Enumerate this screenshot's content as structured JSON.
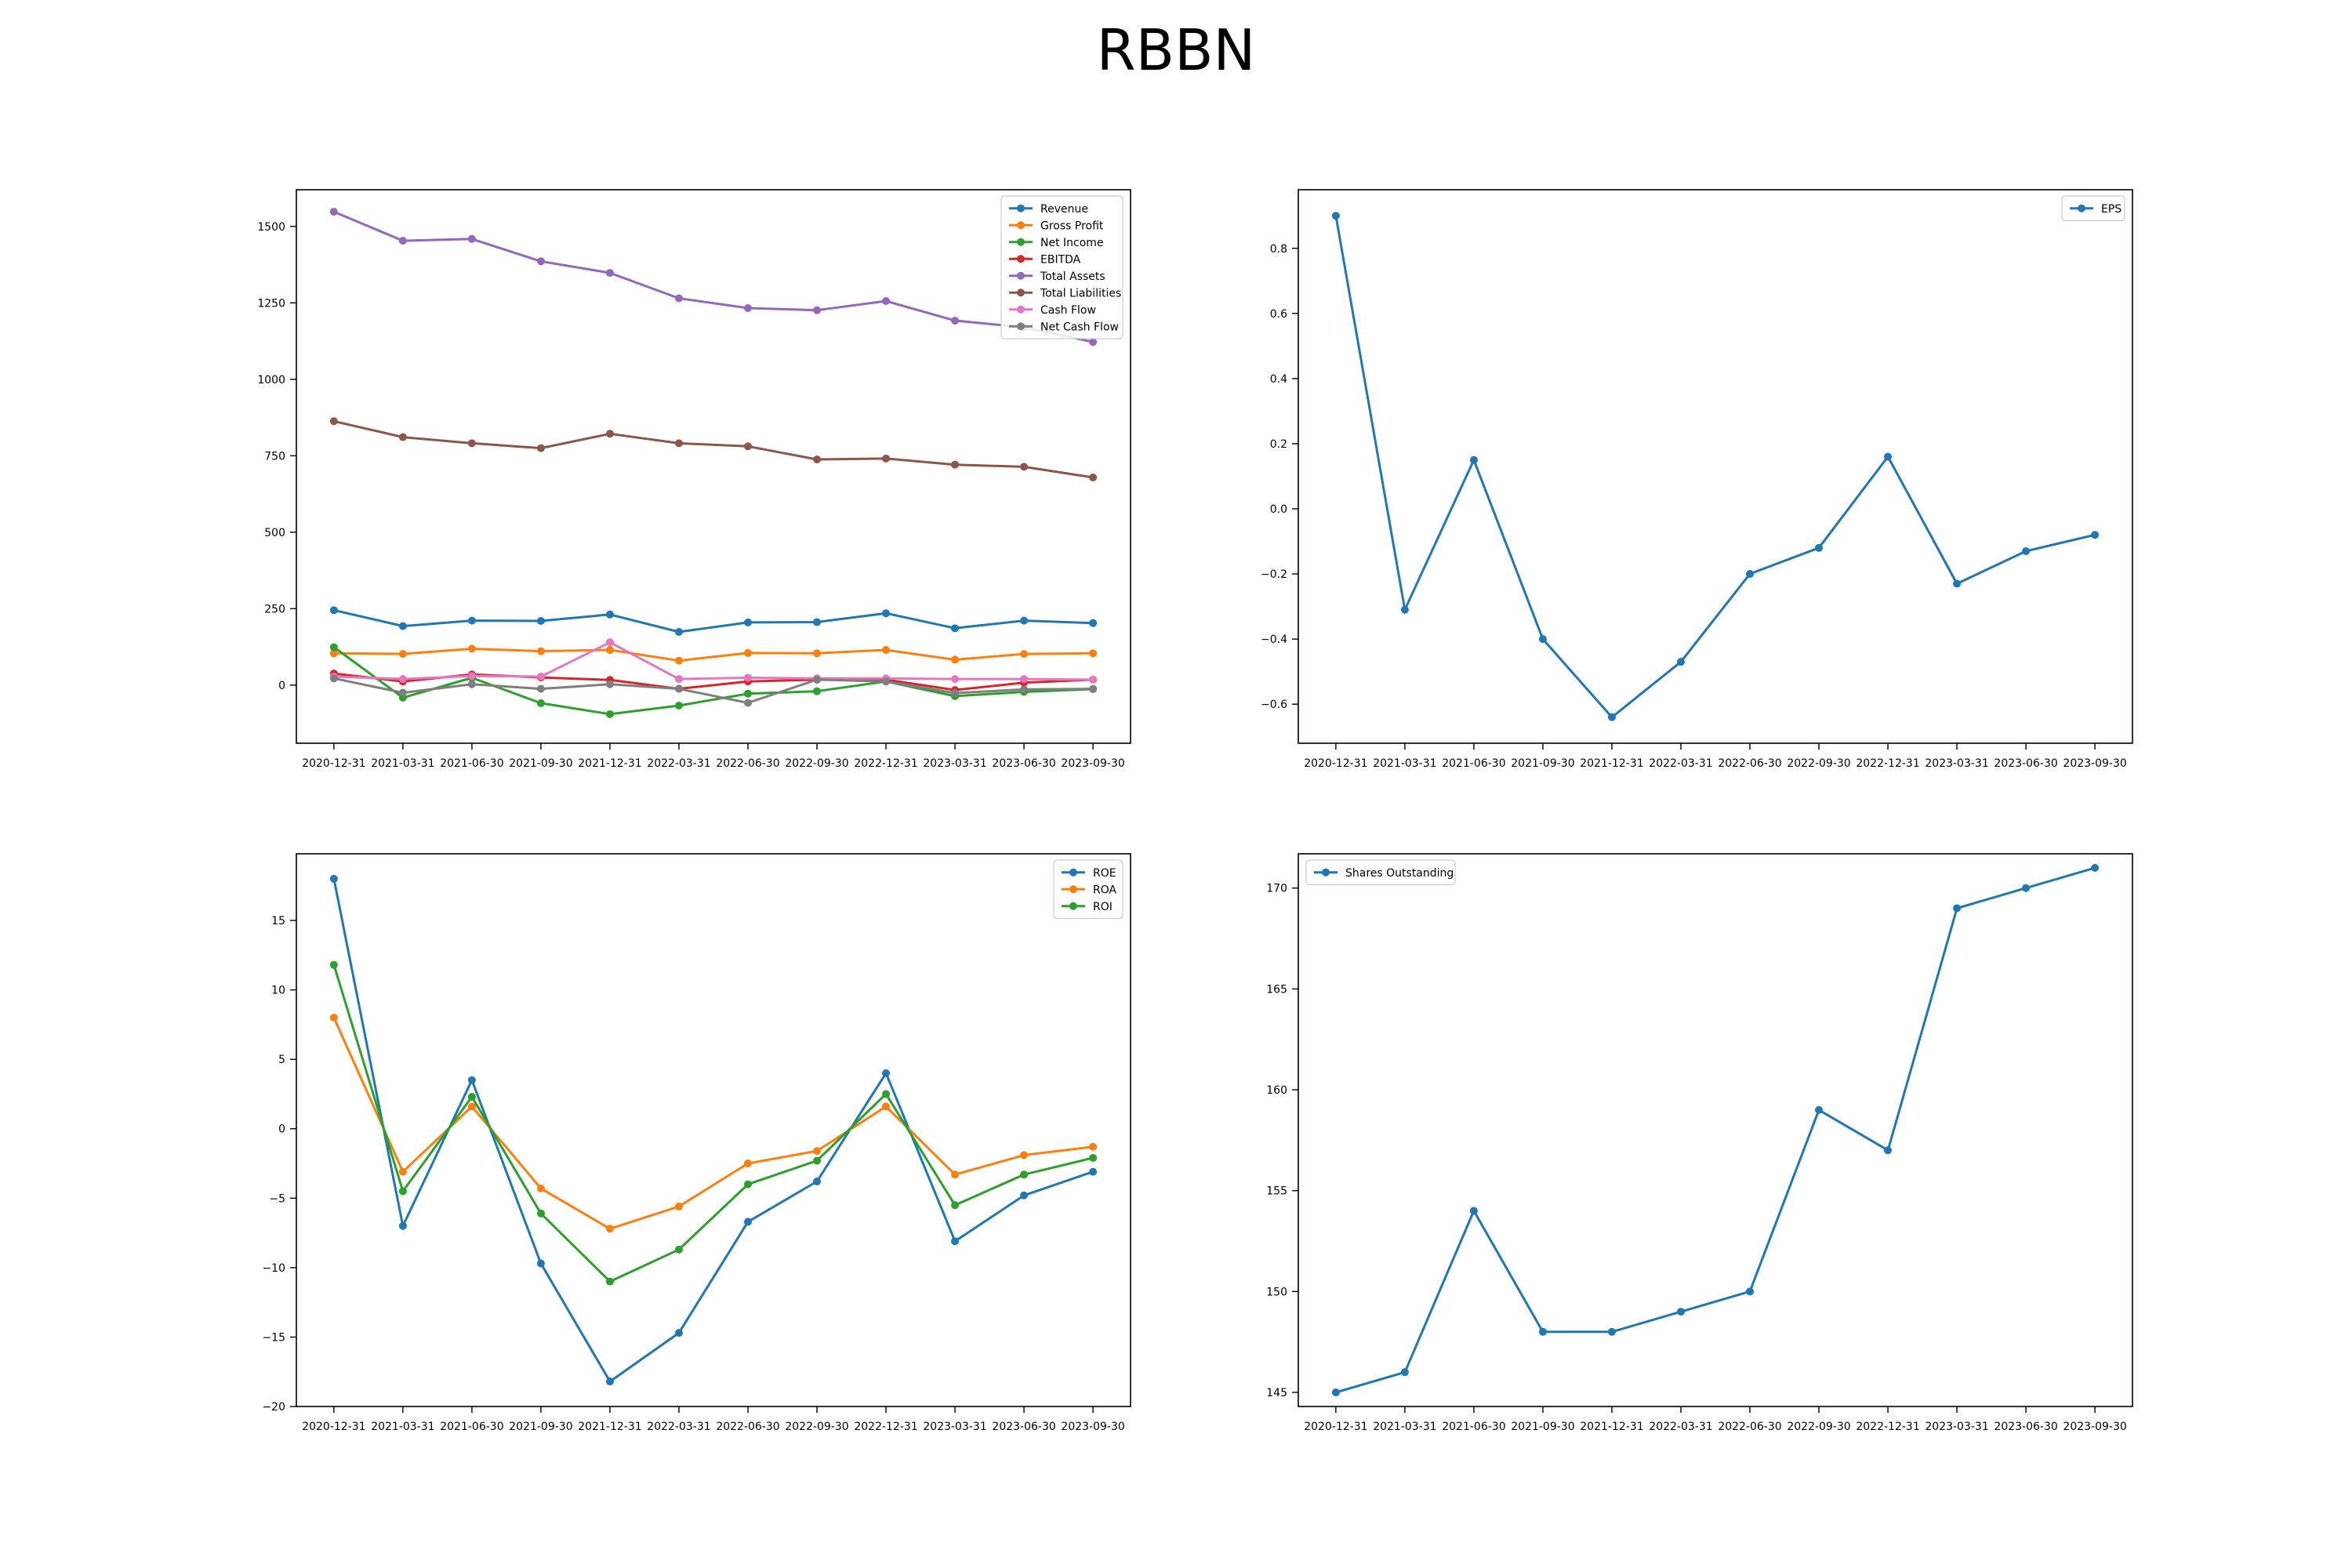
{
  "title": "RBBN",
  "chart_data": [
    {
      "type": "line",
      "categories": [
        "2020-12-31",
        "2021-03-31",
        "2021-06-30",
        "2021-09-30",
        "2021-12-31",
        "2022-03-31",
        "2022-06-30",
        "2022-09-30",
        "2022-12-31",
        "2023-03-31",
        "2023-06-30",
        "2023-09-30"
      ],
      "ylim": [
        -190,
        1620
      ],
      "yticks": [
        0,
        250,
        500,
        750,
        1000,
        1250,
        1500
      ],
      "legend": "upper-right",
      "grid": false,
      "series": [
        {
          "name": "Revenue",
          "color": "#1f77b4",
          "values": [
            245,
            193,
            211,
            210,
            231,
            174,
            205,
            206,
            235,
            186,
            211,
            203
          ]
        },
        {
          "name": "Gross Profit",
          "color": "#ff7f0e",
          "values": [
            104,
            102,
            119,
            111,
            115,
            80,
            105,
            104,
            115,
            83,
            102,
            104
          ]
        },
        {
          "name": "Net Income",
          "color": "#2ca02c",
          "values": [
            124,
            -41,
            24,
            -59,
            -95,
            -67,
            -28,
            -20,
            12,
            -36,
            -22,
            -13
          ]
        },
        {
          "name": "EBITDA",
          "color": "#d62728",
          "values": [
            38,
            12,
            35,
            25,
            17,
            -12,
            12,
            18,
            18,
            -16,
            8,
            18
          ]
        },
        {
          "name": "Total Assets",
          "color": "#9467bd",
          "values": [
            1548,
            1453,
            1459,
            1386,
            1348,
            1265,
            1233,
            1226,
            1256,
            1192,
            1170,
            1122
          ]
        },
        {
          "name": "Total Liabilities",
          "color": "#8c564b",
          "values": [
            863,
            811,
            791,
            775,
            822,
            791,
            781,
            738,
            741,
            721,
            714,
            679
          ]
        },
        {
          "name": "Cash Flow",
          "color": "#e377c2",
          "values": [
            28,
            20,
            30,
            28,
            140,
            20,
            24,
            22,
            22,
            20,
            20,
            18
          ]
        },
        {
          "name": "Net Cash Flow",
          "color": "#7f7f7f",
          "values": [
            22,
            -25,
            3,
            -12,
            3,
            -12,
            -58,
            18,
            12,
            -26,
            -14,
            -12
          ]
        }
      ]
    },
    {
      "type": "line",
      "categories": [
        "2020-12-31",
        "2021-03-31",
        "2021-06-30",
        "2021-09-30",
        "2021-12-31",
        "2022-03-31",
        "2022-06-30",
        "2022-09-30",
        "2022-12-31",
        "2023-03-31",
        "2023-06-30",
        "2023-09-30"
      ],
      "ylim": [
        -0.72,
        0.98
      ],
      "yticks": [
        -0.6,
        -0.4,
        -0.2,
        0.0,
        0.2,
        0.4,
        0.6,
        0.8
      ],
      "legend": "upper-right",
      "grid": false,
      "series": [
        {
          "name": "EPS",
          "color": "#1f77b4",
          "values": [
            0.9,
            -0.31,
            0.15,
            -0.4,
            -0.64,
            -0.47,
            -0.2,
            -0.12,
            0.16,
            -0.23,
            -0.13,
            -0.08
          ]
        }
      ]
    },
    {
      "type": "line",
      "categories": [
        "2020-12-31",
        "2021-03-31",
        "2021-06-30",
        "2021-09-30",
        "2021-12-31",
        "2022-03-31",
        "2022-06-30",
        "2022-09-30",
        "2022-12-31",
        "2023-03-31",
        "2023-06-30",
        "2023-09-30"
      ],
      "ylim": [
        -20.0,
        19.8
      ],
      "yticks": [
        -20,
        -15,
        -10,
        -5,
        0,
        5,
        10,
        15
      ],
      "legend": "upper-right",
      "grid": false,
      "series": [
        {
          "name": "ROE",
          "color": "#1f77b4",
          "values": [
            18.0,
            -7.0,
            3.5,
            -9.7,
            -18.2,
            -14.7,
            -6.7,
            -3.8,
            4.0,
            -8.1,
            -4.8,
            -3.1
          ]
        },
        {
          "name": "ROA",
          "color": "#ff7f0e",
          "values": [
            8.0,
            -3.1,
            1.6,
            -4.3,
            -7.2,
            -5.6,
            -2.5,
            -1.6,
            1.6,
            -3.3,
            -1.9,
            -1.3
          ]
        },
        {
          "name": "ROI",
          "color": "#2ca02c",
          "values": [
            11.8,
            -4.5,
            2.3,
            -6.1,
            -11.0,
            -8.7,
            -4.0,
            -2.3,
            2.5,
            -5.5,
            -3.3,
            -2.1
          ]
        }
      ]
    },
    {
      "type": "line",
      "categories": [
        "2020-12-31",
        "2021-03-31",
        "2021-06-30",
        "2021-09-30",
        "2021-12-31",
        "2022-03-31",
        "2022-06-30",
        "2022-09-30",
        "2022-12-31",
        "2023-03-31",
        "2023-06-30",
        "2023-09-30"
      ],
      "ylim": [
        144.3,
        171.7
      ],
      "yticks": [
        145,
        150,
        155,
        160,
        165,
        170
      ],
      "legend": "upper-left",
      "grid": false,
      "series": [
        {
          "name": "Shares Outstanding",
          "color": "#1f77b4",
          "values": [
            145,
            146,
            154,
            148,
            148,
            149,
            150,
            159,
            157,
            169,
            170,
            171
          ]
        }
      ]
    }
  ]
}
